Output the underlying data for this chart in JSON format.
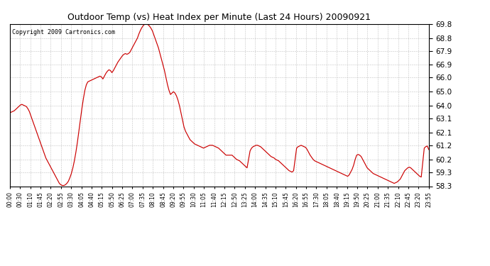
{
  "title": "Outdoor Temp (vs) Heat Index per Minute (Last 24 Hours) 20090921",
  "copyright": "Copyright 2009 Cartronics.com",
  "line_color": "#cc0000",
  "background_color": "#ffffff",
  "grid_color": "#aaaaaa",
  "ylim": [
    58.3,
    69.8
  ],
  "yticks": [
    58.3,
    59.3,
    60.2,
    61.2,
    62.1,
    63.1,
    64.0,
    65.0,
    66.0,
    66.9,
    67.9,
    68.8,
    69.8
  ],
  "xtick_labels": [
    "00:00",
    "00:30",
    "01:10",
    "01:45",
    "02:20",
    "02:55",
    "03:30",
    "04:05",
    "04:40",
    "05:15",
    "05:50",
    "06:25",
    "07:00",
    "07:35",
    "08:10",
    "08:45",
    "09:20",
    "09:55",
    "10:30",
    "11:05",
    "11:40",
    "12:15",
    "12:50",
    "13:25",
    "14:00",
    "14:35",
    "15:10",
    "15:45",
    "16:20",
    "16:55",
    "17:30",
    "18:05",
    "18:40",
    "19:15",
    "19:50",
    "20:25",
    "21:00",
    "21:35",
    "22:10",
    "22:45",
    "23:20",
    "23:55"
  ],
  "data_y": [
    63.5,
    63.55,
    63.6,
    63.65,
    63.75,
    63.85,
    63.95,
    64.05,
    64.1,
    64.05,
    64.0,
    63.95,
    63.8,
    63.6,
    63.3,
    63.0,
    62.7,
    62.4,
    62.1,
    61.8,
    61.5,
    61.2,
    60.9,
    60.6,
    60.3,
    60.1,
    59.9,
    59.7,
    59.5,
    59.3,
    59.1,
    58.9,
    58.7,
    58.5,
    58.4,
    58.35,
    58.35,
    58.4,
    58.5,
    58.65,
    58.9,
    59.2,
    59.6,
    60.1,
    60.7,
    61.4,
    62.2,
    63.0,
    63.8,
    64.5,
    65.1,
    65.5,
    65.7,
    65.75,
    65.8,
    65.85,
    65.9,
    65.95,
    66.0,
    66.05,
    66.1,
    66.05,
    65.9,
    66.1,
    66.3,
    66.45,
    66.55,
    66.5,
    66.35,
    66.5,
    66.7,
    66.9,
    67.1,
    67.25,
    67.4,
    67.55,
    67.65,
    67.7,
    67.65,
    67.7,
    67.8,
    68.0,
    68.2,
    68.4,
    68.6,
    68.8,
    69.1,
    69.35,
    69.55,
    69.7,
    69.8,
    69.8,
    69.75,
    69.65,
    69.5,
    69.3,
    69.0,
    68.7,
    68.4,
    68.1,
    67.7,
    67.3,
    66.9,
    66.5,
    66.0,
    65.5,
    65.1,
    64.8,
    64.9,
    65.0,
    64.9,
    64.7,
    64.4,
    64.0,
    63.5,
    63.0,
    62.5,
    62.2,
    62.0,
    61.8,
    61.6,
    61.5,
    61.4,
    61.3,
    61.25,
    61.2,
    61.15,
    61.1,
    61.05,
    61.0,
    61.05,
    61.1,
    61.15,
    61.2,
    61.2,
    61.2,
    61.15,
    61.1,
    61.05,
    61.0,
    60.9,
    60.8,
    60.7,
    60.6,
    60.5,
    60.5,
    60.5,
    60.5,
    60.5,
    60.4,
    60.3,
    60.2,
    60.15,
    60.1,
    60.0,
    59.9,
    59.8,
    59.7,
    59.6,
    60.2,
    60.8,
    61.0,
    61.1,
    61.15,
    61.2,
    61.2,
    61.15,
    61.1,
    61.0,
    60.9,
    60.8,
    60.7,
    60.6,
    60.5,
    60.4,
    60.35,
    60.3,
    60.2,
    60.15,
    60.1,
    60.0,
    59.9,
    59.8,
    59.7,
    59.6,
    59.5,
    59.4,
    59.35,
    59.3,
    59.4,
    60.2,
    61.0,
    61.1,
    61.15,
    61.2,
    61.15,
    61.1,
    61.05,
    60.9,
    60.7,
    60.5,
    60.35,
    60.2,
    60.1,
    60.05,
    60.0,
    59.95,
    59.9,
    59.85,
    59.8,
    59.75,
    59.7,
    59.65,
    59.6,
    59.55,
    59.5,
    59.45,
    59.4,
    59.35,
    59.3,
    59.25,
    59.2,
    59.15,
    59.1,
    59.05,
    59.0,
    59.1,
    59.3,
    59.5,
    59.8,
    60.2,
    60.5,
    60.55,
    60.5,
    60.4,
    60.2,
    60.0,
    59.8,
    59.6,
    59.5,
    59.4,
    59.3,
    59.2,
    59.15,
    59.1,
    59.05,
    59.0,
    58.95,
    58.9,
    58.85,
    58.8,
    58.75,
    58.7,
    58.65,
    58.6,
    58.55,
    58.5,
    58.55,
    58.6,
    58.7,
    58.8,
    59.0,
    59.2,
    59.4,
    59.5,
    59.6,
    59.65,
    59.6,
    59.5,
    59.4,
    59.3,
    59.2,
    59.1,
    59.0,
    58.95,
    60.0,
    61.0,
    61.1,
    61.15,
    60.9
  ],
  "num_points": 280,
  "title_fontsize": 9,
  "copyright_fontsize": 6,
  "ytick_fontsize": 7.5,
  "xtick_fontsize": 5.5
}
